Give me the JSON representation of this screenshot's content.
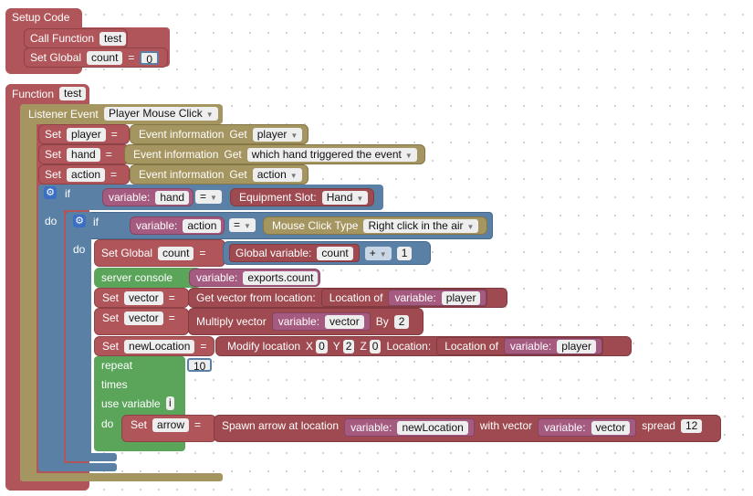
{
  "setup": {
    "title": "Setup Code",
    "call_label": "Call Function",
    "call_value": "test",
    "set_global": "Set Global",
    "var": "count",
    "eq": "=",
    "value": "0"
  },
  "func": {
    "title": "Function",
    "name": "test"
  },
  "listener": {
    "label": "Listener Event",
    "event": "Player Mouse Click"
  },
  "set1": {
    "set": "Set",
    "var": "player",
    "eq": "=",
    "info": "Event information",
    "get": "Get",
    "value": "player"
  },
  "set2": {
    "set": "Set",
    "var": "hand",
    "eq": "=",
    "info": "Event information",
    "get": "Get",
    "value": "which hand triggered the event"
  },
  "set3": {
    "set": "Set",
    "var": "action",
    "eq": "=",
    "info": "Event information",
    "get": "Get",
    "value": "action"
  },
  "if1": {
    "if": "if",
    "do": "do",
    "variable": "variable:",
    "var": "hand",
    "op": "=",
    "slot_label": "Equipment Slot:",
    "slot": "Hand"
  },
  "if2": {
    "if": "if",
    "do": "do",
    "variable": "variable:",
    "var": "action",
    "op": "=",
    "type_label": "Mouse Click Type",
    "type": "Right click in the air"
  },
  "setglobal": {
    "label": "Set Global",
    "var": "count",
    "eq": "=",
    "gv_label": "Global variable:",
    "gv": "count",
    "op": "+",
    "num": "1"
  },
  "console": {
    "label": "server console",
    "variable": "variable:",
    "value": "exports.count"
  },
  "vec1": {
    "set": "Set",
    "var": "vector",
    "eq": "=",
    "fn": "Get vector from location:",
    "loc": "Location of",
    "variable": "variable:",
    "value": "player"
  },
  "vec2": {
    "set": "Set",
    "var": "vector",
    "eq": "=",
    "fn": "Multiply vector",
    "variable": "variable:",
    "value": "vector",
    "by": "By",
    "num": "2"
  },
  "newloc": {
    "set": "Set",
    "var": "newLocation",
    "eq": "=",
    "fn": "Modify location",
    "x": "X",
    "xv": "0",
    "y": "Y",
    "yv": "2",
    "z": "Z",
    "zv": "0",
    "loc_label": "Location:",
    "loc": "Location of",
    "variable": "variable:",
    "value": "player"
  },
  "repeat": {
    "label": "repeat",
    "count": "10",
    "times": "times",
    "use": "use variable",
    "var": "i",
    "do": "do"
  },
  "arrow": {
    "set": "Set",
    "var": "arrow",
    "eq": "=",
    "fn": "Spawn arrow at location",
    "variable": "variable:",
    "loc": "newLocation",
    "with": "with vector",
    "variable2": "variable:",
    "vec": "vector",
    "spread": "spread",
    "num": "12"
  }
}
